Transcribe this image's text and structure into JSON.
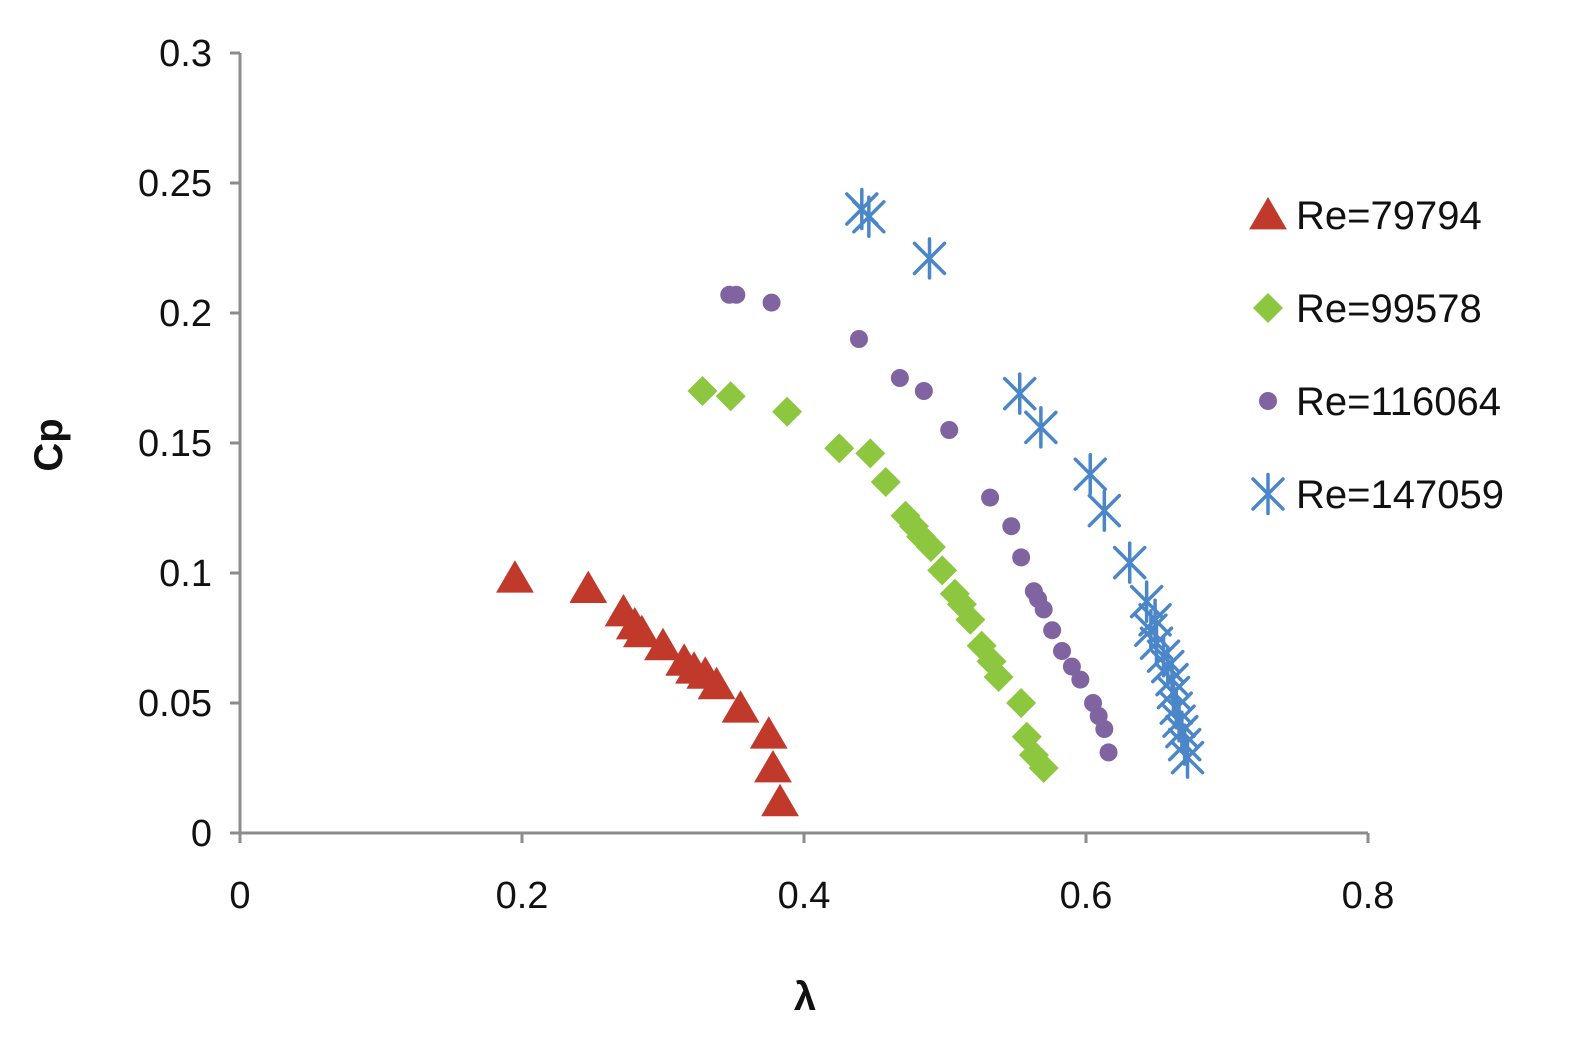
{
  "chart_data": {
    "type": "scatter",
    "title": "",
    "xlabel": "λ",
    "ylabel": "Cp",
    "xlim": [
      0,
      0.8
    ],
    "ylim": [
      0,
      0.3
    ],
    "x_ticks": [
      0,
      0.2,
      0.4,
      0.6,
      0.8
    ],
    "x_tick_labels": [
      "0",
      "0.2",
      "0.4",
      "0.6",
      "0.8"
    ],
    "y_ticks": [
      0,
      0.05,
      0.1,
      0.15,
      0.2,
      0.25,
      0.3
    ],
    "y_tick_labels": [
      "0",
      "0.05",
      "0.1",
      "0.15",
      "0.2",
      "0.25",
      "0.3"
    ],
    "grid": false,
    "legend_position": "right",
    "series": [
      {
        "name": "Re=79794",
        "marker": "triangle",
        "color": "#c0392b",
        "points": [
          [
            0.195,
            0.098
          ],
          [
            0.247,
            0.094
          ],
          [
            0.272,
            0.085
          ],
          [
            0.28,
            0.08
          ],
          [
            0.285,
            0.077
          ],
          [
            0.3,
            0.072
          ],
          [
            0.315,
            0.066
          ],
          [
            0.322,
            0.063
          ],
          [
            0.33,
            0.061
          ],
          [
            0.338,
            0.057
          ],
          [
            0.355,
            0.048
          ],
          [
            0.375,
            0.038
          ],
          [
            0.378,
            0.025
          ],
          [
            0.383,
            0.012
          ]
        ]
      },
      {
        "name": "Re=99578",
        "marker": "diamond",
        "color": "#8dc63f",
        "points": [
          [
            0.328,
            0.17
          ],
          [
            0.348,
            0.168
          ],
          [
            0.388,
            0.162
          ],
          [
            0.425,
            0.148
          ],
          [
            0.447,
            0.146
          ],
          [
            0.458,
            0.135
          ],
          [
            0.472,
            0.122
          ],
          [
            0.478,
            0.118
          ],
          [
            0.483,
            0.114
          ],
          [
            0.49,
            0.11
          ],
          [
            0.498,
            0.101
          ],
          [
            0.507,
            0.092
          ],
          [
            0.512,
            0.088
          ],
          [
            0.518,
            0.082
          ],
          [
            0.526,
            0.072
          ],
          [
            0.533,
            0.066
          ],
          [
            0.538,
            0.06
          ],
          [
            0.554,
            0.05
          ],
          [
            0.558,
            0.037
          ],
          [
            0.563,
            0.03
          ],
          [
            0.57,
            0.025
          ]
        ]
      },
      {
        "name": "Re=116064",
        "marker": "circle",
        "color": "#8064a2",
        "points": [
          [
            0.347,
            0.207
          ],
          [
            0.352,
            0.207
          ],
          [
            0.377,
            0.204
          ],
          [
            0.439,
            0.19
          ],
          [
            0.468,
            0.175
          ],
          [
            0.485,
            0.17
          ],
          [
            0.503,
            0.155
          ],
          [
            0.532,
            0.129
          ],
          [
            0.547,
            0.118
          ],
          [
            0.554,
            0.106
          ],
          [
            0.563,
            0.093
          ],
          [
            0.566,
            0.09
          ],
          [
            0.57,
            0.086
          ],
          [
            0.576,
            0.078
          ],
          [
            0.583,
            0.07
          ],
          [
            0.59,
            0.064
          ],
          [
            0.596,
            0.059
          ],
          [
            0.605,
            0.05
          ],
          [
            0.609,
            0.045
          ],
          [
            0.613,
            0.04
          ],
          [
            0.616,
            0.031
          ]
        ]
      },
      {
        "name": "Re=147059",
        "marker": "asterisk",
        "color": "#4a86c8",
        "points": [
          [
            0.441,
            0.24
          ],
          [
            0.446,
            0.237
          ],
          [
            0.489,
            0.221
          ],
          [
            0.553,
            0.169
          ],
          [
            0.568,
            0.156
          ],
          [
            0.603,
            0.138
          ],
          [
            0.613,
            0.124
          ],
          [
            0.631,
            0.104
          ],
          [
            0.643,
            0.089
          ],
          [
            0.649,
            0.082
          ],
          [
            0.646,
            0.078
          ],
          [
            0.65,
            0.073
          ],
          [
            0.655,
            0.068
          ],
          [
            0.658,
            0.064
          ],
          [
            0.661,
            0.059
          ],
          [
            0.662,
            0.054
          ],
          [
            0.664,
            0.048
          ],
          [
            0.666,
            0.043
          ],
          [
            0.668,
            0.039
          ],
          [
            0.67,
            0.034
          ],
          [
            0.672,
            0.029
          ]
        ]
      }
    ]
  }
}
